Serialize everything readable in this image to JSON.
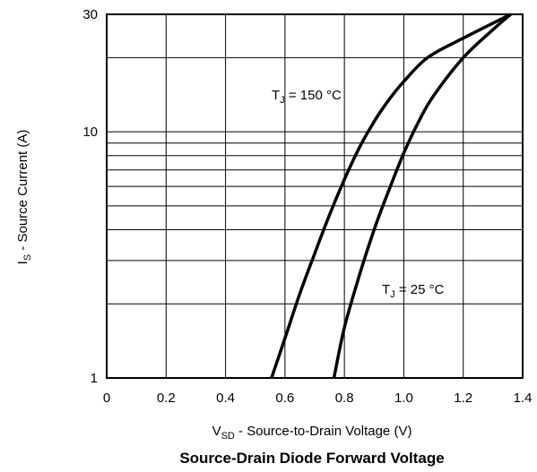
{
  "chart_data": {
    "type": "line",
    "title": "Source-Drain Diode Forward Voltage",
    "xlabel": {
      "main": "V",
      "sub": "SD",
      "rest": " - Source-to-Drain Voltage (V)"
    },
    "ylabel": {
      "main": "I",
      "sub": "S",
      "rest": " - Source Current (A)"
    },
    "xlim": [
      0,
      1.4
    ],
    "ylim": [
      1,
      30
    ],
    "yscale": "log",
    "grid": true,
    "x_ticks": [
      0,
      0.2,
      0.4,
      0.6,
      0.8,
      1.0,
      1.2,
      1.4
    ],
    "x_tick_labels": [
      "0",
      "0.2",
      "0.4",
      "0.6",
      "0.8",
      "1.0",
      "1.2",
      "1.4"
    ],
    "y_ticks": [
      1,
      10,
      30
    ],
    "y_tick_labels": [
      "1",
      "10",
      "30"
    ],
    "y_minor_gridlines": [
      2,
      3,
      4,
      5,
      6,
      7,
      8,
      9,
      20
    ],
    "series": [
      {
        "annotation": {
          "main": "T",
          "sub": "J",
          "rest": " = 150 °C"
        },
        "x": [
          0.555,
          0.6,
          0.65,
          0.7,
          0.75,
          0.8,
          0.85,
          0.9,
          0.95,
          1.0,
          1.08,
          1.2,
          1.36
        ],
        "y": [
          1.0,
          1.45,
          2.2,
          3.2,
          4.6,
          6.4,
          8.6,
          11.0,
          13.5,
          16.0,
          20.0,
          24.0,
          30.0
        ]
      },
      {
        "annotation": {
          "main": "T",
          "sub": "J",
          "rest": " = 25 °C"
        },
        "x": [
          0.765,
          0.8,
          0.85,
          0.9,
          0.95,
          1.0,
          1.05,
          1.1,
          1.2,
          1.3,
          1.36
        ],
        "y": [
          1.0,
          1.6,
          2.6,
          4.0,
          5.8,
          8.2,
          11.0,
          14.0,
          20.0,
          26.0,
          30.0
        ]
      }
    ]
  }
}
